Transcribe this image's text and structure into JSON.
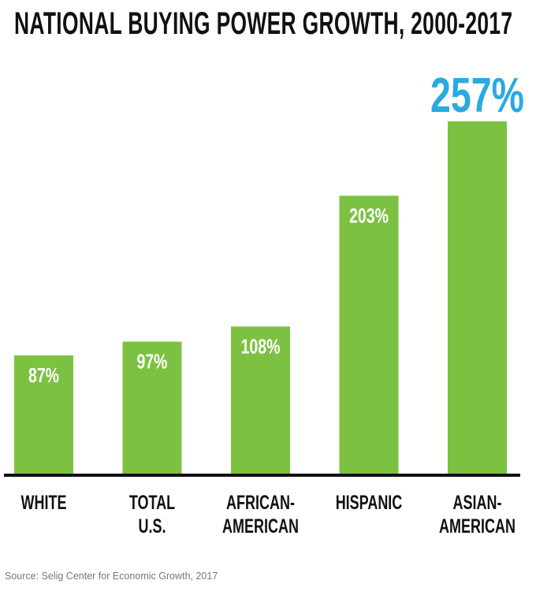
{
  "chart_data": {
    "type": "bar",
    "title": "NATIONAL BUYING POWER GROWTH, 2000-2017",
    "categories": [
      [
        "WHITE"
      ],
      [
        "TOTAL",
        "U.S."
      ],
      [
        "AFRICAN-",
        "AMERICAN"
      ],
      [
        "HISPANIC"
      ],
      [
        "ASIAN-",
        "AMERICAN"
      ]
    ],
    "values": [
      87,
      97,
      108,
      203,
      257
    ],
    "labels": [
      "87%",
      "97%",
      "108%",
      "203%",
      "257%"
    ],
    "highlight_index": 4,
    "xlabel": "",
    "ylabel": "",
    "ylim": [
      0,
      257
    ],
    "grid": false,
    "source": "Source: Selig Center for Economic Growth, 2017",
    "colors": {
      "bar": "#7dc142",
      "highlight_label": "#29aae1",
      "label": "#ffffff",
      "axis": "#111111"
    }
  }
}
